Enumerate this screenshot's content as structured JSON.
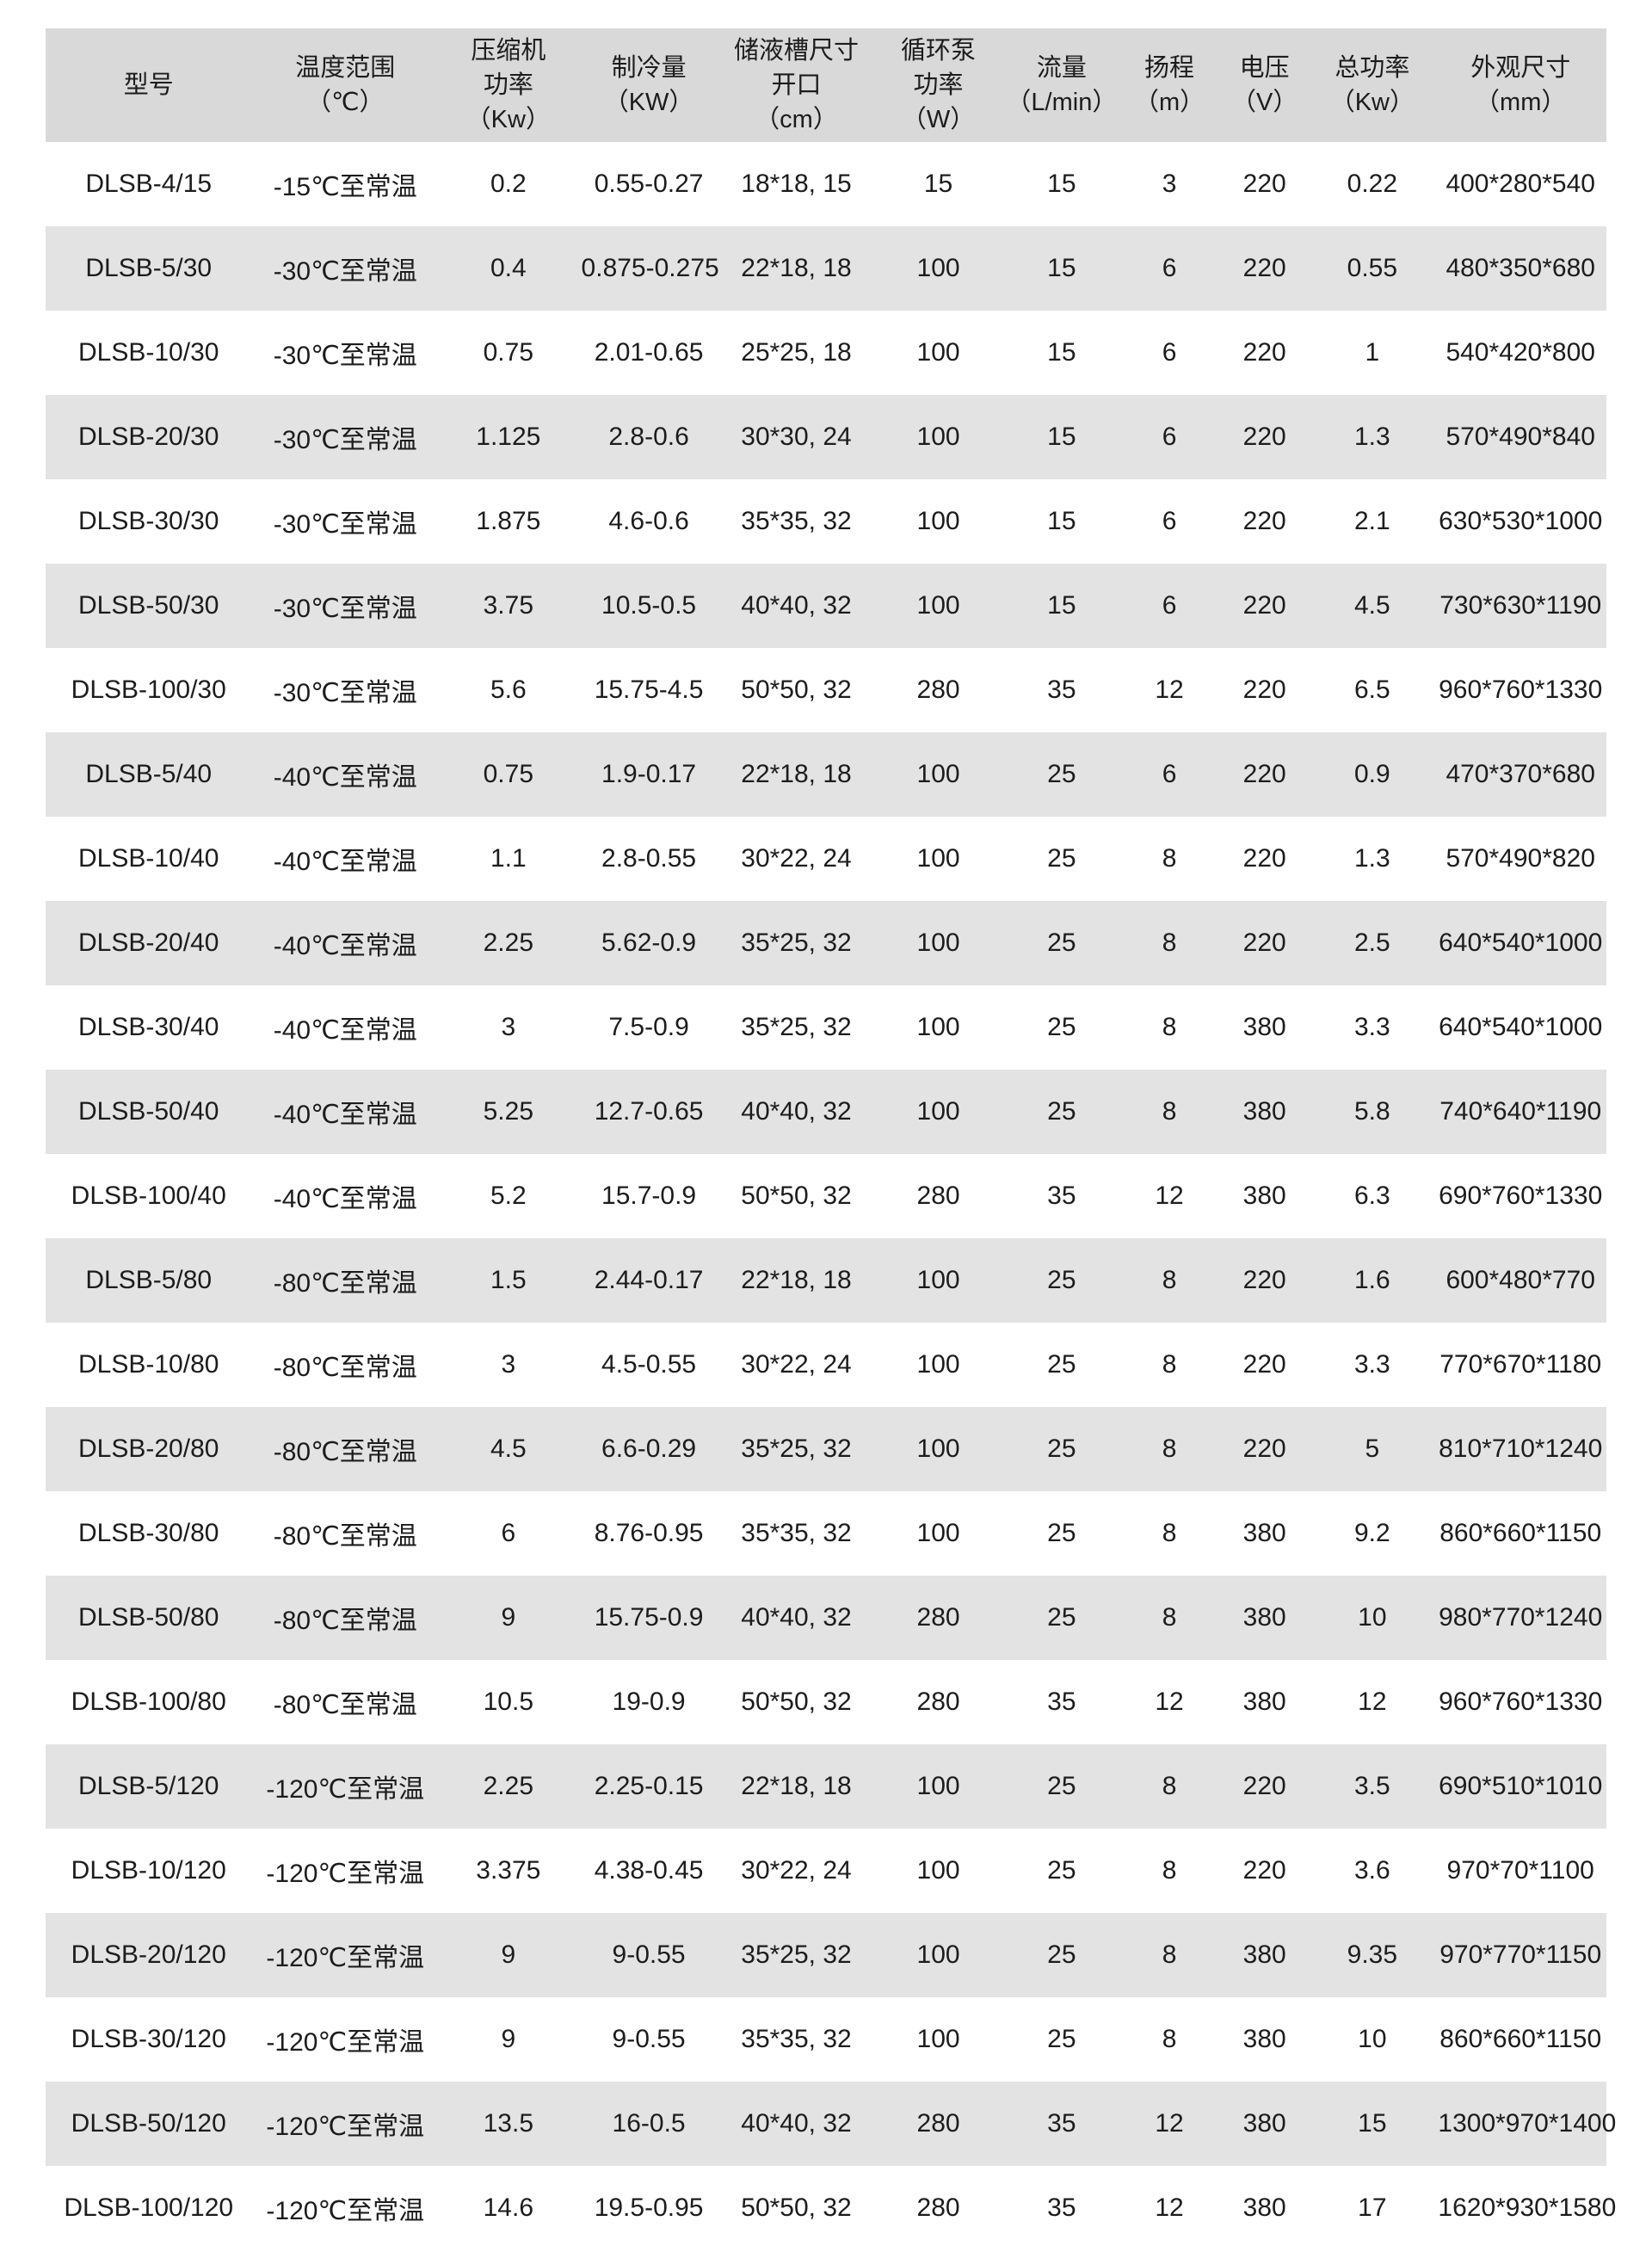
{
  "table": {
    "header_bg": "#d9d9d9",
    "row_alt_bg": "#e3e3e3",
    "text_color": "#1c1c1c",
    "columns": [
      {
        "id": "model",
        "label": "型号"
      },
      {
        "id": "temp-range",
        "label": "温度范围\n（℃）"
      },
      {
        "id": "compressor-power",
        "label": "压缩机\n功率\n（Kw）"
      },
      {
        "id": "cooling-capacity",
        "label": "制冷量\n（KW）"
      },
      {
        "id": "tank-size",
        "label": "储液槽尺寸\n开口\n（cm）"
      },
      {
        "id": "pump-power",
        "label": "循环泵\n功率\n（W）"
      },
      {
        "id": "flow-rate",
        "label": "流量\n（L/min）"
      },
      {
        "id": "lift",
        "label": "扬程\n（m）"
      },
      {
        "id": "voltage",
        "label": "电压\n（V）"
      },
      {
        "id": "total-power",
        "label": "总功率\n（Kw）"
      },
      {
        "id": "dimensions",
        "label": "外观尺寸\n（mm）"
      }
    ],
    "rows": [
      [
        "DLSB-4/15",
        "-15℃至常温",
        "0.2",
        "0.55-0.27",
        "18*18, 15",
        "15",
        "15",
        "3",
        "220",
        "0.22",
        "400*280*540"
      ],
      [
        "DLSB-5/30",
        "-30℃至常温",
        "0.4",
        "0.875-0.275",
        "22*18, 18",
        "100",
        "15",
        "6",
        "220",
        "0.55",
        "480*350*680"
      ],
      [
        "DLSB-10/30",
        "-30℃至常温",
        "0.75",
        "2.01-0.65",
        "25*25, 18",
        "100",
        "15",
        "6",
        "220",
        "1",
        "540*420*800"
      ],
      [
        "DLSB-20/30",
        "-30℃至常温",
        "1.125",
        "2.8-0.6",
        "30*30, 24",
        "100",
        "15",
        "6",
        "220",
        "1.3",
        "570*490*840"
      ],
      [
        "DLSB-30/30",
        "-30℃至常温",
        "1.875",
        "4.6-0.6",
        "35*35, 32",
        "100",
        "15",
        "6",
        "220",
        "2.1",
        "630*530*1000"
      ],
      [
        "DLSB-50/30",
        "-30℃至常温",
        "3.75",
        "10.5-0.5",
        "40*40, 32",
        "100",
        "15",
        "6",
        "220",
        "4.5",
        "730*630*1190"
      ],
      [
        "DLSB-100/30",
        "-30℃至常温",
        "5.6",
        "15.75-4.5",
        "50*50, 32",
        "280",
        "35",
        "12",
        "220",
        "6.5",
        "960*760*1330"
      ],
      [
        "DLSB-5/40",
        "-40℃至常温",
        "0.75",
        "1.9-0.17",
        "22*18, 18",
        "100",
        "25",
        "6",
        "220",
        "0.9",
        "470*370*680"
      ],
      [
        "DLSB-10/40",
        "-40℃至常温",
        "1.1",
        "2.8-0.55",
        "30*22, 24",
        "100",
        "25",
        "8",
        "220",
        "1.3",
        "570*490*820"
      ],
      [
        "DLSB-20/40",
        "-40℃至常温",
        "2.25",
        "5.62-0.9",
        "35*25, 32",
        "100",
        "25",
        "8",
        "220",
        "2.5",
        "640*540*1000"
      ],
      [
        "DLSB-30/40",
        "-40℃至常温",
        "3",
        "7.5-0.9",
        "35*25, 32",
        "100",
        "25",
        "8",
        "380",
        "3.3",
        "640*540*1000"
      ],
      [
        "DLSB-50/40",
        "-40℃至常温",
        "5.25",
        "12.7-0.65",
        "40*40, 32",
        "100",
        "25",
        "8",
        "380",
        "5.8",
        "740*640*1190"
      ],
      [
        "DLSB-100/40",
        "-40℃至常温",
        "5.2",
        "15.7-0.9",
        "50*50, 32",
        "280",
        "35",
        "12",
        "380",
        "6.3",
        "690*760*1330"
      ],
      [
        "DLSB-5/80",
        "-80℃至常温",
        "1.5",
        "2.44-0.17",
        "22*18, 18",
        "100",
        "25",
        "8",
        "220",
        "1.6",
        "600*480*770"
      ],
      [
        "DLSB-10/80",
        "-80℃至常温",
        "3",
        "4.5-0.55",
        "30*22, 24",
        "100",
        "25",
        "8",
        "220",
        "3.3",
        "770*670*1180"
      ],
      [
        "DLSB-20/80",
        "-80℃至常温",
        "4.5",
        "6.6-0.29",
        "35*25, 32",
        "100",
        "25",
        "8",
        "220",
        "5",
        "810*710*1240"
      ],
      [
        "DLSB-30/80",
        "-80℃至常温",
        "6",
        "8.76-0.95",
        "35*35, 32",
        "100",
        "25",
        "8",
        "380",
        "9.2",
        "860*660*1150"
      ],
      [
        "DLSB-50/80",
        "-80℃至常温",
        "9",
        "15.75-0.9",
        "40*40, 32",
        "280",
        "25",
        "8",
        "380",
        "10",
        "980*770*1240"
      ],
      [
        "DLSB-100/80",
        "-80℃至常温",
        "10.5",
        "19-0.9",
        "50*50, 32",
        "280",
        "35",
        "12",
        "380",
        "12",
        "960*760*1330"
      ],
      [
        "DLSB-5/120",
        "-120℃至常温",
        "2.25",
        "2.25-0.15",
        "22*18, 18",
        "100",
        "25",
        "8",
        "220",
        "3.5",
        "690*510*1010"
      ],
      [
        "DLSB-10/120",
        "-120℃至常温",
        "3.375",
        "4.38-0.45",
        "30*22, 24",
        "100",
        "25",
        "8",
        "220",
        "3.6",
        "970*70*1100"
      ],
      [
        "DLSB-20/120",
        "-120℃至常温",
        "9",
        "9-0.55",
        "35*25, 32",
        "100",
        "25",
        "8",
        "380",
        "9.35",
        "970*770*1150"
      ],
      [
        "DLSB-30/120",
        "-120℃至常温",
        "9",
        "9-0.55",
        "35*35, 32",
        "100",
        "25",
        "8",
        "380",
        "10",
        "860*660*1150"
      ],
      [
        "DLSB-50/120",
        "-120℃至常温",
        "13.5",
        "16-0.5",
        "40*40, 32",
        "280",
        "35",
        "12",
        "380",
        "15",
        "1300*970*1400"
      ],
      [
        "DLSB-100/120",
        "-120℃至常温",
        "14.6",
        "19.5-0.95",
        "50*50, 32",
        "280",
        "35",
        "12",
        "380",
        "17",
        "1620*930*1580"
      ]
    ]
  }
}
